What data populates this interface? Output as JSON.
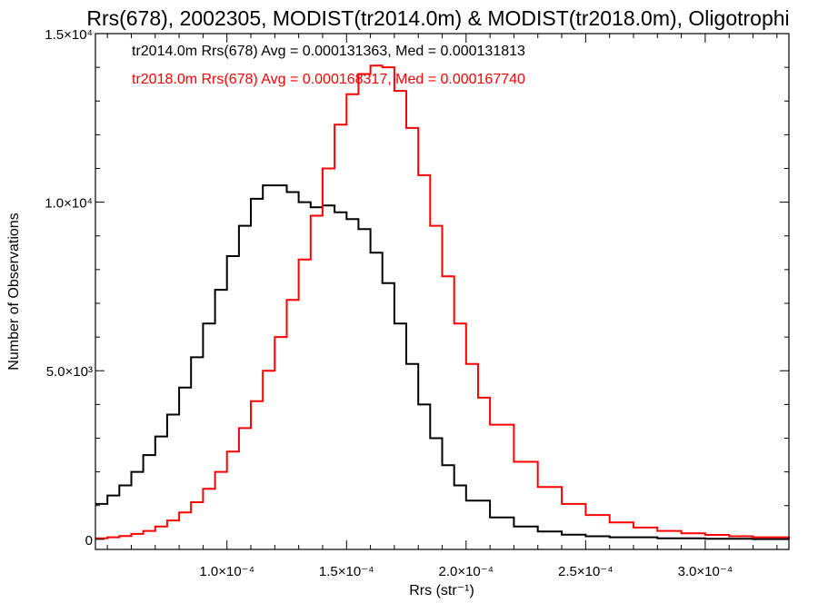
{
  "chart_data": {
    "type": "line",
    "title": "Rrs(678), 2002305, MODIST(tr2014.0m) & MODIST(tr2018.0m), Oligotrophi",
    "xlabel": "Rrs (str⁻¹)",
    "ylabel": "Number of Observations",
    "xlim": [
      4.5e-05,
      0.000335
    ],
    "ylim": [
      -300,
      15000
    ],
    "x_ticks": [
      {
        "value": 0.0001,
        "label": "1.0×10⁻⁴"
      },
      {
        "value": 0.00015,
        "label": "1.5×10⁻⁴"
      },
      {
        "value": 0.0002,
        "label": "2.0×10⁻⁴"
      },
      {
        "value": 0.00025,
        "label": "2.5×10⁻⁴"
      },
      {
        "value": 0.0003,
        "label": "3.0×10⁻⁴"
      }
    ],
    "y_ticks": [
      {
        "value": 0,
        "label": "0"
      },
      {
        "value": 5000,
        "label": "5.0×10³"
      },
      {
        "value": 10000,
        "label": "1.0×10⁴"
      },
      {
        "value": 15000,
        "label": "1.5×10⁴"
      }
    ],
    "grid": false,
    "annotations": [
      {
        "text": "tr2014.0m Rrs(678) Avg = 0.000131363, Med = 0.000131813",
        "color": "#000000"
      },
      {
        "text": "tr2018.0m Rrs(678) Avg = 0.000168317, Med = 0.000167740",
        "color": "#ff0000"
      }
    ],
    "series": [
      {
        "color": "#000000",
        "step": true,
        "x": [
          4.5e-05,
          5e-05,
          5.5e-05,
          6e-05,
          6.5e-05,
          7e-05,
          7.5e-05,
          8e-05,
          8.5e-05,
          9e-05,
          9.5e-05,
          0.0001,
          0.000105,
          0.00011,
          0.000115,
          0.00012,
          0.000125,
          0.00013,
          0.000135,
          0.00014,
          0.000145,
          0.00015,
          0.000155,
          0.00016,
          0.000165,
          0.00017,
          0.000175,
          0.00018,
          0.000185,
          0.00019,
          0.000195,
          0.0002,
          0.00021,
          0.00022,
          0.00023,
          0.00024,
          0.00025,
          0.00026,
          0.00028,
          0.0003,
          0.00032,
          0.000335
        ],
        "y": [
          1050,
          1300,
          1600,
          2000,
          2500,
          3050,
          3700,
          4500,
          5400,
          6400,
          7400,
          8400,
          9300,
          10100,
          10500,
          10500,
          10300,
          10000,
          9850,
          9900,
          9700,
          9500,
          9200,
          8500,
          7600,
          6400,
          5200,
          4000,
          3000,
          2200,
          1600,
          1150,
          650,
          380,
          230,
          140,
          90,
          60,
          30,
          15,
          8,
          5
        ]
      },
      {
        "color": "#ff0000",
        "step": true,
        "x": [
          4.5e-05,
          5e-05,
          5.5e-05,
          6e-05,
          6.5e-05,
          7e-05,
          7.5e-05,
          8e-05,
          8.5e-05,
          9e-05,
          9.5e-05,
          0.0001,
          0.000105,
          0.00011,
          0.000115,
          0.00012,
          0.000125,
          0.00013,
          0.000135,
          0.00014,
          0.000145,
          0.00015,
          0.000155,
          0.00016,
          0.000165,
          0.00017,
          0.000175,
          0.00018,
          0.000185,
          0.00019,
          0.000195,
          0.0002,
          0.000205,
          0.00021,
          0.00022,
          0.00023,
          0.00024,
          0.00025,
          0.00026,
          0.00027,
          0.00028,
          0.00029,
          0.0003,
          0.00031,
          0.00032,
          0.000335
        ],
        "y": [
          30,
          60,
          100,
          160,
          250,
          380,
          560,
          800,
          1100,
          1500,
          2000,
          2600,
          3300,
          4100,
          5000,
          6000,
          7100,
          8300,
          9600,
          11000,
          12300,
          13200,
          13800,
          14050,
          14000,
          13300,
          12200,
          10800,
          9300,
          7800,
          6400,
          5200,
          4200,
          3400,
          2300,
          1550,
          1050,
          720,
          500,
          350,
          250,
          180,
          130,
          90,
          60,
          40
        ]
      }
    ]
  }
}
